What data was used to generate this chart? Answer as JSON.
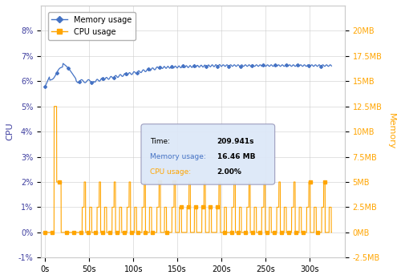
{
  "title": "",
  "xlabel": "",
  "ylabel_left": "CPU",
  "ylabel_right": "Memory",
  "xlim": [
    -5,
    340
  ],
  "ylim_left": [
    -0.01,
    0.09
  ],
  "ylim_right": [
    -2.5,
    22.5
  ],
  "x_ticks": [
    0,
    50,
    100,
    150,
    200,
    250,
    300
  ],
  "x_tick_labels": [
    "0s",
    "50s",
    "100s",
    "150s",
    "200s",
    "250s",
    "300s"
  ],
  "y_ticks_left": [
    -0.01,
    0.0,
    0.01,
    0.02,
    0.03,
    0.04,
    0.05,
    0.06,
    0.07,
    0.08
  ],
  "y_tick_labels_left": [
    "-1%",
    "0%",
    "1%",
    "2%",
    "3%",
    "4%",
    "5%",
    "6%",
    "7%",
    "8%"
  ],
  "y_ticks_right": [
    -2.5,
    0.0,
    2.5,
    5.0,
    7.5,
    10.0,
    12.5,
    15.0,
    17.5,
    20.0
  ],
  "y_tick_labels_right": [
    "-2.5MB",
    "0MB",
    "2.5MB",
    "5MB",
    "7.5MB",
    "10MB",
    "12.5MB",
    "15MB",
    "17.5MB",
    "20MB"
  ],
  "memory_color": "#4472C4",
  "cpu_color": "#FFA500",
  "memory_label": "Memory usage",
  "cpu_label": "CPU usage",
  "tooltip_val_time": "209.941s",
  "tooltip_val_mem": "16.46 MB",
  "tooltip_val_cpu": "2.00%",
  "bg_color": "#ffffff",
  "grid_color": "#cccccc"
}
